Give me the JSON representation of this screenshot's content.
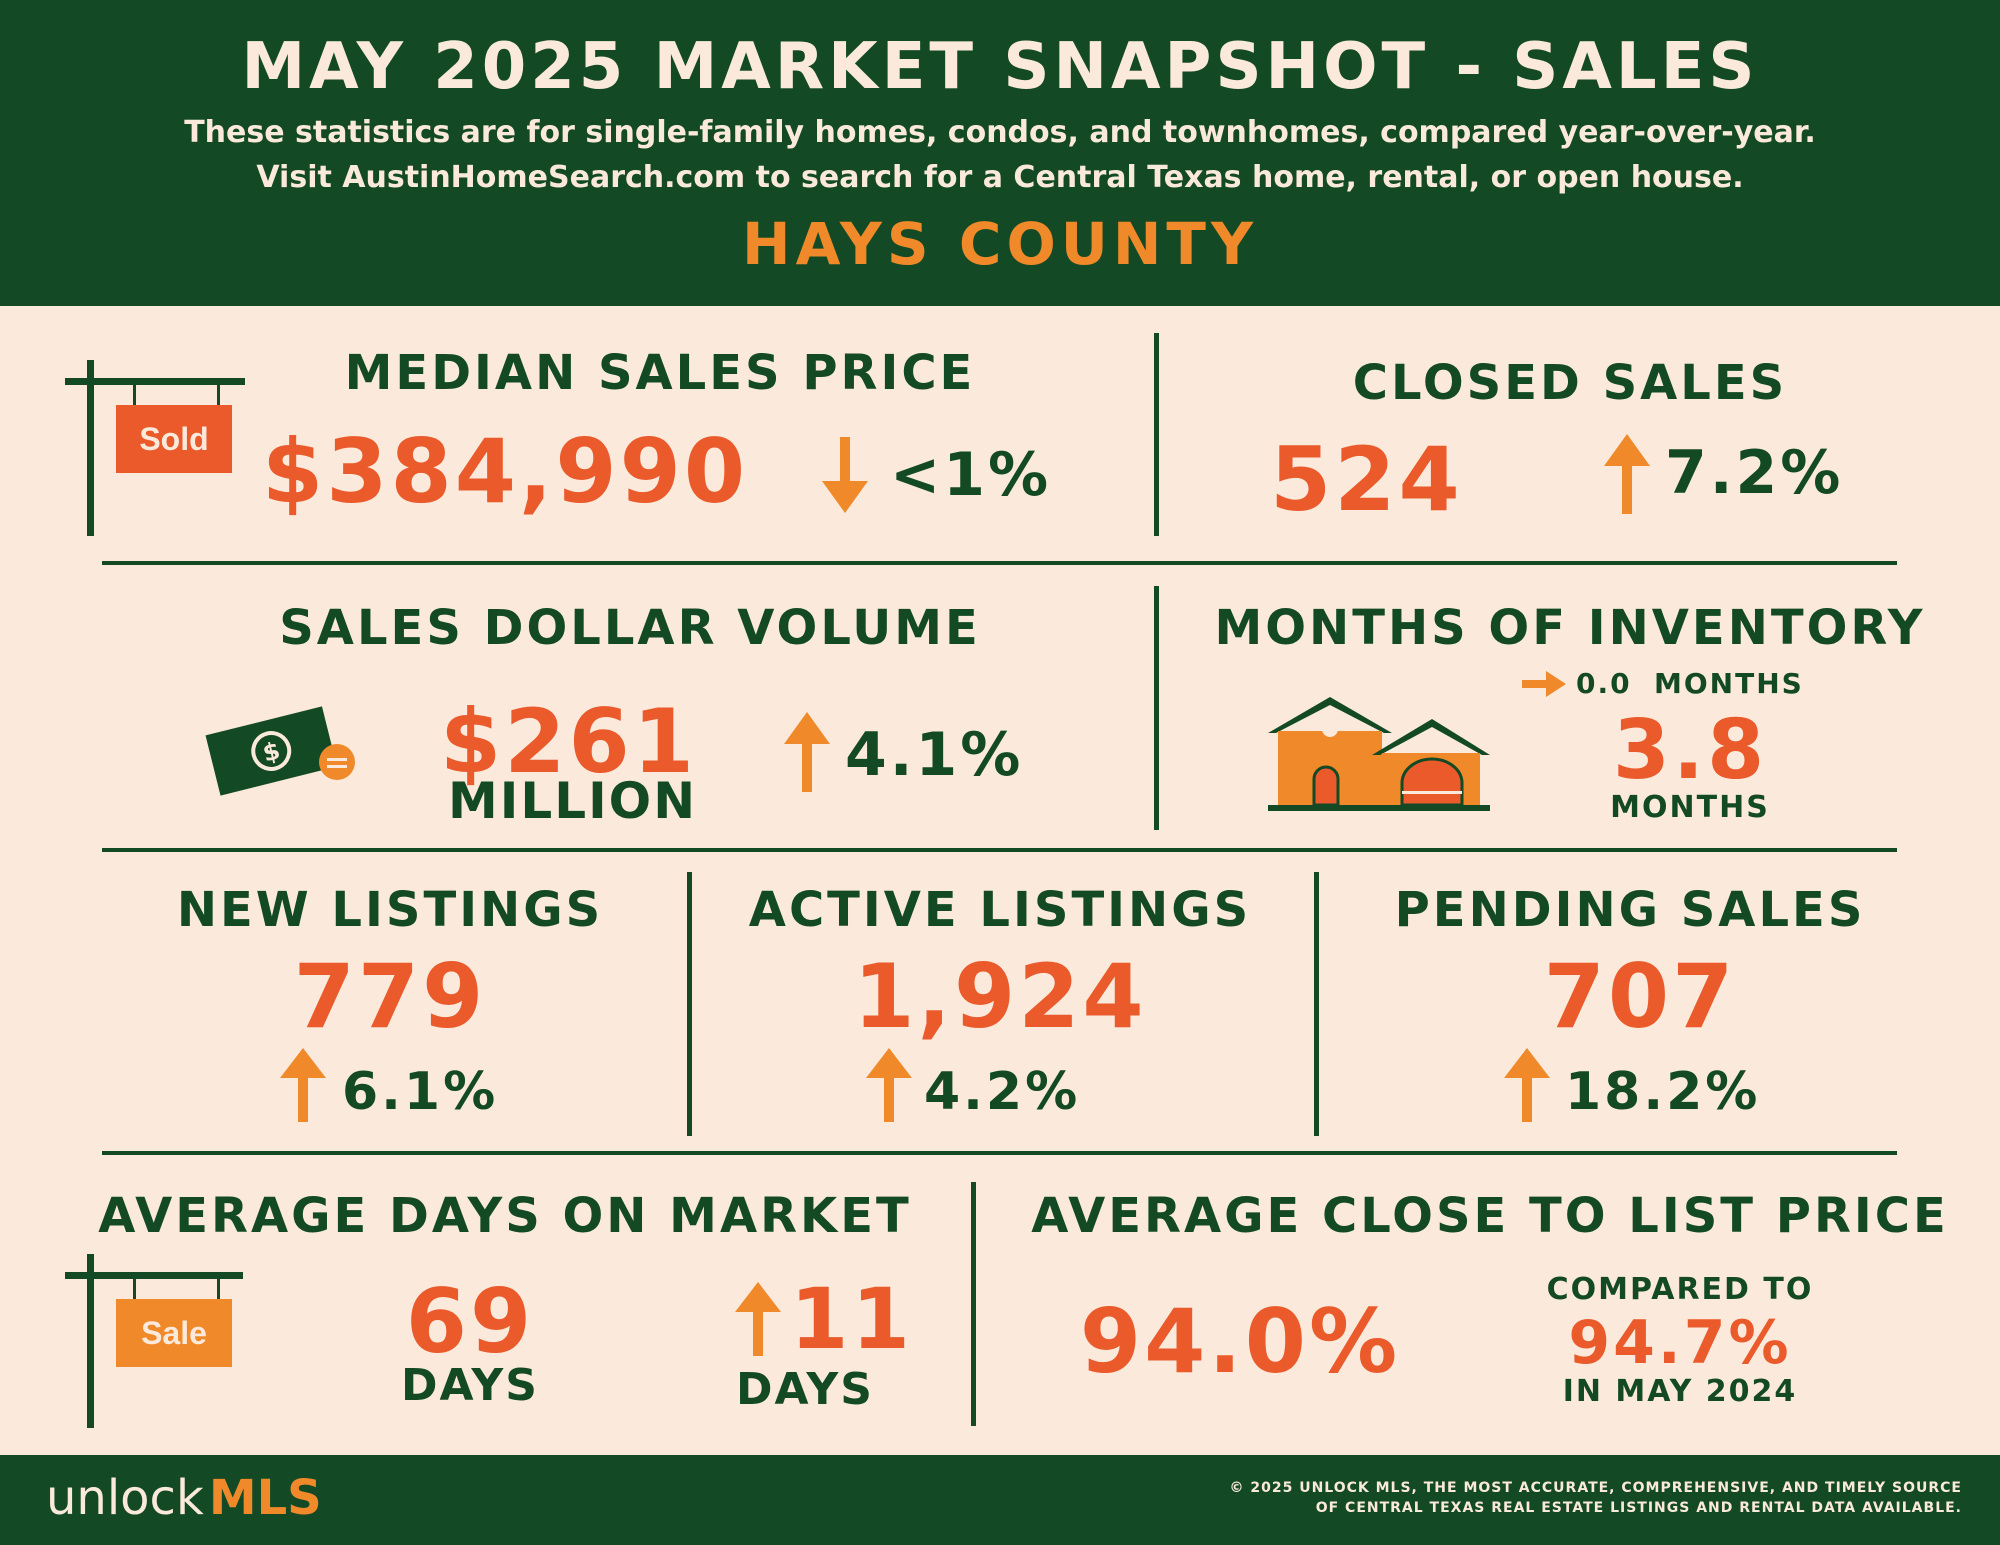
{
  "header": {
    "title": "MAY 2025 MARKET SNAPSHOT - SALES",
    "subtitle_line1": "These statistics are for single-family homes, condos, and townhomes, compared year-over-year.",
    "subtitle_line2": "Visit AustinHomeSearch.com to search for a Central Texas home, rental, or open house.",
    "county": "HAYS COUNTY"
  },
  "median_sales_price": {
    "label": "MEDIAN SALES PRICE",
    "value": "$384,990",
    "change": "<1%",
    "direction": "down",
    "sign_text": "Sold"
  },
  "closed_sales": {
    "label": "CLOSED SALES",
    "value": "524",
    "change": "7.2%",
    "direction": "up"
  },
  "sales_dollar_volume": {
    "label": "SALES DOLLAR VOLUME",
    "value": "$261",
    "unit": "MILLION",
    "change": "4.1%",
    "direction": "up"
  },
  "months_of_inventory": {
    "label": "MONTHS OF INVENTORY",
    "change": "0.0",
    "change_unit": "MONTHS",
    "direction": "flat",
    "value": "3.8",
    "unit": "MONTHS"
  },
  "new_listings": {
    "label": "NEW LISTINGS",
    "value": "779",
    "change": "6.1%",
    "direction": "up"
  },
  "active_listings": {
    "label": "ACTIVE LISTINGS",
    "value": "1,924",
    "change": "4.2%",
    "direction": "up"
  },
  "pending_sales": {
    "label": "PENDING SALES",
    "value": "707",
    "change": "18.2%",
    "direction": "up"
  },
  "avg_days_on_market": {
    "label": "AVERAGE DAYS ON MARKET",
    "value": "69",
    "unit": "DAYS",
    "change": "11",
    "change_unit": "DAYS",
    "direction": "up",
    "sign_text": "Sale"
  },
  "avg_close_to_list": {
    "label": "AVERAGE CLOSE TO LIST PRICE",
    "value": "94.0%",
    "compared_label": "COMPARED TO",
    "compared_value": "94.7%",
    "compared_period": "IN MAY 2024"
  },
  "footer": {
    "brand_unlock": "unlock",
    "brand_mls": "MLS",
    "copyright_line1": "© 2025 UNLOCK MLS, THE MOST ACCURATE, COMPREHENSIVE, AND TIMELY SOURCE",
    "copyright_line2": "OF CENTRAL TEXAS REAL ESTATE LISTINGS AND RENTAL DATA AVAILABLE."
  },
  "colors": {
    "green": "#134a25",
    "orange": "#f0892a",
    "red_orange": "#ea5a2b",
    "cream": "#fbeadc"
  },
  "icons": [
    "sold-sign-icon",
    "arrow-down-icon",
    "arrow-up-icon",
    "arrow-right-icon",
    "cash-icon",
    "coin-icon",
    "house-icon",
    "sale-sign-icon"
  ]
}
